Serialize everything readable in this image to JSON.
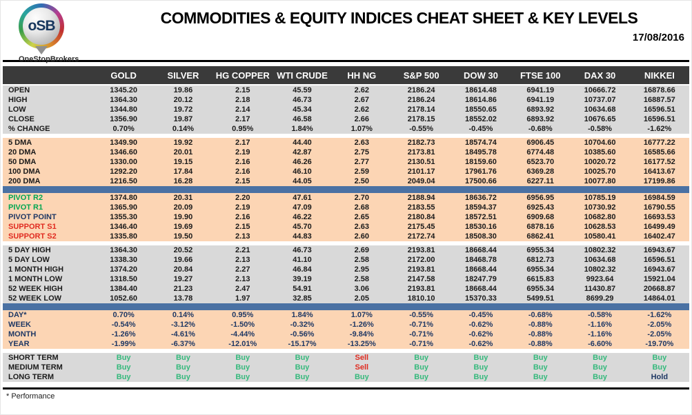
{
  "header": {
    "logo_text": "oSB",
    "logo_subtext": "OneStopBrokers",
    "title": "COMMODITIES & EQUITY INDICES CHEAT SHEET & KEY LEVELS",
    "date": "17/08/2016"
  },
  "footer": {
    "note": "* Performance"
  },
  "colors": {
    "header_bg": "#3a3a3a",
    "gray_band": "#d9d9d9",
    "peach_band": "#fcd5b4",
    "divider_blue": "#4a71a3",
    "green": "#00a651",
    "red": "#e02b20",
    "navy": "#1f3864",
    "buy_green": "#35b97c"
  },
  "chart_data": {
    "type": "table",
    "title": "COMMODITIES & EQUITY INDICES CHEAT SHEET & KEY LEVELS",
    "columns": [
      "GOLD",
      "SILVER",
      "HG COPPER",
      "WTI CRUDE",
      "HH NG",
      "S&P 500",
      "DOW 30",
      "FTSE 100",
      "DAX 30",
      "NIKKEI"
    ],
    "sections": [
      {
        "id": "ohlc",
        "band": "gray",
        "rows": [
          {
            "label": "OPEN",
            "values": [
              "1345.20",
              "19.86",
              "2.15",
              "45.59",
              "2.62",
              "2186.24",
              "18614.48",
              "6941.19",
              "10666.72",
              "16878.66"
            ]
          },
          {
            "label": "HIGH",
            "values": [
              "1364.30",
              "20.12",
              "2.18",
              "46.73",
              "2.67",
              "2186.24",
              "18614.86",
              "6941.19",
              "10737.07",
              "16887.57"
            ]
          },
          {
            "label": "LOW",
            "values": [
              "1344.80",
              "19.72",
              "2.14",
              "45.34",
              "2.62",
              "2178.14",
              "18550.65",
              "6893.92",
              "10634.68",
              "16596.51"
            ]
          },
          {
            "label": "CLOSE",
            "values": [
              "1356.90",
              "19.87",
              "2.17",
              "46.58",
              "2.66",
              "2178.15",
              "18552.02",
              "6893.92",
              "10676.65",
              "16596.51"
            ]
          },
          {
            "label": "% CHANGE",
            "values": [
              "0.70%",
              "0.14%",
              "0.95%",
              "1.84%",
              "1.07%",
              "-0.55%",
              "-0.45%",
              "-0.68%",
              "-0.58%",
              "-1.62%"
            ]
          }
        ]
      },
      {
        "id": "dma",
        "band": "peach",
        "rows": [
          {
            "label": "5 DMA",
            "values": [
              "1349.90",
              "19.92",
              "2.17",
              "44.40",
              "2.63",
              "2182.73",
              "18574.74",
              "6906.45",
              "10704.60",
              "16777.22"
            ]
          },
          {
            "label": "20 DMA",
            "values": [
              "1346.60",
              "20.01",
              "2.19",
              "42.87",
              "2.75",
              "2173.81",
              "18495.78",
              "6774.48",
              "10385.60",
              "16585.66"
            ]
          },
          {
            "label": "50 DMA",
            "values": [
              "1330.00",
              "19.15",
              "2.16",
              "46.26",
              "2.77",
              "2130.51",
              "18159.60",
              "6523.70",
              "10020.72",
              "16177.52"
            ]
          },
          {
            "label": "100 DMA",
            "values": [
              "1292.20",
              "17.84",
              "2.16",
              "46.10",
              "2.59",
              "2101.17",
              "17961.76",
              "6369.28",
              "10025.70",
              "16413.67"
            ]
          },
          {
            "label": "200 DMA",
            "values": [
              "1216.50",
              "16.28",
              "2.15",
              "44.05",
              "2.50",
              "2049.04",
              "17500.66",
              "6227.11",
              "10077.80",
              "17199.86"
            ]
          }
        ]
      },
      {
        "id": "divider-1",
        "type": "divider"
      },
      {
        "id": "pivots",
        "band": "peach",
        "rows": [
          {
            "label": "PIVOT R2",
            "label_color": "green",
            "values": [
              "1374.80",
              "20.31",
              "2.20",
              "47.61",
              "2.70",
              "2188.94",
              "18636.72",
              "6956.95",
              "10785.19",
              "16984.59"
            ]
          },
          {
            "label": "PIVOT R1",
            "label_color": "green",
            "values": [
              "1365.90",
              "20.09",
              "2.19",
              "47.09",
              "2.68",
              "2183.55",
              "18594.37",
              "6925.43",
              "10730.92",
              "16790.55"
            ]
          },
          {
            "label": "PIVOT POINT",
            "label_color": "navy",
            "values": [
              "1355.30",
              "19.90",
              "2.16",
              "46.22",
              "2.65",
              "2180.84",
              "18572.51",
              "6909.68",
              "10682.80",
              "16693.53"
            ]
          },
          {
            "label": "SUPPORT S1",
            "label_color": "red",
            "values": [
              "1346.40",
              "19.69",
              "2.15",
              "45.70",
              "2.63",
              "2175.45",
              "18530.16",
              "6878.16",
              "10628.53",
              "16499.49"
            ]
          },
          {
            "label": "SUPPORT S2",
            "label_color": "red",
            "values": [
              "1335.80",
              "19.50",
              "2.13",
              "44.83",
              "2.60",
              "2172.74",
              "18508.30",
              "6862.41",
              "10580.41",
              "16402.47"
            ]
          }
        ]
      },
      {
        "id": "ranges",
        "band": "gray",
        "rows": [
          {
            "label": "5 DAY HIGH",
            "values": [
              "1364.30",
              "20.52",
              "2.21",
              "46.73",
              "2.69",
              "2193.81",
              "18668.44",
              "6955.34",
              "10802.32",
              "16943.67"
            ]
          },
          {
            "label": "5 DAY LOW",
            "values": [
              "1338.30",
              "19.66",
              "2.13",
              "41.10",
              "2.58",
              "2172.00",
              "18468.78",
              "6812.73",
              "10634.68",
              "16596.51"
            ]
          },
          {
            "label": "1 MONTH HIGH",
            "values": [
              "1374.20",
              "20.84",
              "2.27",
              "46.84",
              "2.95",
              "2193.81",
              "18668.44",
              "6955.34",
              "10802.32",
              "16943.67"
            ]
          },
          {
            "label": "1 MONTH LOW",
            "values": [
              "1318.50",
              "19.27",
              "2.13",
              "39.19",
              "2.58",
              "2147.58",
              "18247.79",
              "6615.83",
              "9923.64",
              "15921.04"
            ]
          },
          {
            "label": "52 WEEK HIGH",
            "values": [
              "1384.40",
              "21.23",
              "2.47",
              "54.91",
              "3.06",
              "2193.81",
              "18668.44",
              "6955.34",
              "11430.87",
              "20668.87"
            ]
          },
          {
            "label": "52 WEEK LOW",
            "values": [
              "1052.60",
              "13.78",
              "1.97",
              "32.85",
              "2.05",
              "1810.10",
              "15370.33",
              "5499.51",
              "8699.29",
              "14864.01"
            ]
          }
        ]
      },
      {
        "id": "divider-2",
        "type": "divider"
      },
      {
        "id": "performance",
        "band": "peach",
        "text_color": "navy",
        "rows": [
          {
            "label": "DAY*",
            "values": [
              "0.70%",
              "0.14%",
              "0.95%",
              "1.84%",
              "1.07%",
              "-0.55%",
              "-0.45%",
              "-0.68%",
              "-0.58%",
              "-1.62%"
            ]
          },
          {
            "label": "WEEK",
            "values": [
              "-0.54%",
              "-3.12%",
              "-1.50%",
              "-0.32%",
              "-1.26%",
              "-0.71%",
              "-0.62%",
              "-0.88%",
              "-1.16%",
              "-2.05%"
            ]
          },
          {
            "label": "MONTH",
            "values": [
              "-1.26%",
              "-4.61%",
              "-4.44%",
              "-0.56%",
              "-9.84%",
              "-0.71%",
              "-0.62%",
              "-0.88%",
              "-1.16%",
              "-2.05%"
            ]
          },
          {
            "label": "YEAR",
            "values": [
              "-1.99%",
              "-6.37%",
              "-12.01%",
              "-15.17%",
              "-13.25%",
              "-0.71%",
              "-0.62%",
              "-0.88%",
              "-6.60%",
              "-19.70%"
            ]
          }
        ]
      },
      {
        "id": "signals",
        "band": "gray",
        "signal": true,
        "rows": [
          {
            "label": "SHORT TERM",
            "values": [
              "Buy",
              "Buy",
              "Buy",
              "Buy",
              "Sell",
              "Buy",
              "Buy",
              "Buy",
              "Buy",
              "Buy"
            ]
          },
          {
            "label": "MEDIUM TERM",
            "values": [
              "Buy",
              "Buy",
              "Buy",
              "Buy",
              "Sell",
              "Buy",
              "Buy",
              "Buy",
              "Buy",
              "Buy"
            ]
          },
          {
            "label": "LONG TERM",
            "values": [
              "Buy",
              "Buy",
              "Buy",
              "Buy",
              "Buy",
              "Buy",
              "Buy",
              "Buy",
              "Buy",
              "Hold"
            ]
          }
        ]
      }
    ]
  }
}
